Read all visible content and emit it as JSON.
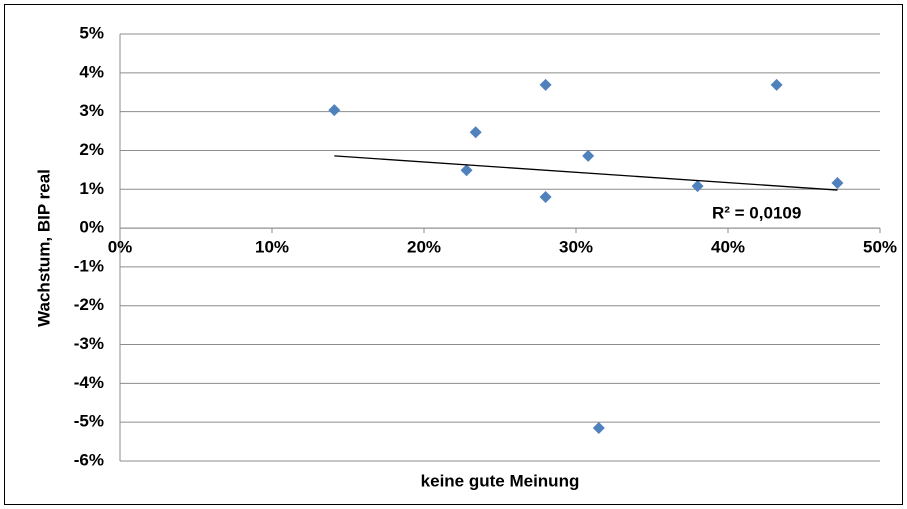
{
  "chart_data": {
    "type": "scatter",
    "x_label": "keine gute Meinung",
    "y_label": "Wachstum, BIP real",
    "series": [
      {
        "color": "#4f81bd",
        "x": [
          14.1,
          22.8,
          23.4,
          28.0,
          28.0,
          30.8,
          31.5,
          38.0,
          43.2,
          47.2
        ],
        "values": [
          3.04,
          1.49,
          2.47,
          3.69,
          0.8,
          1.86,
          -5.15,
          1.08,
          3.69,
          1.16
        ]
      }
    ],
    "trendline": {
      "x": [
        14.1,
        47.2
      ],
      "y": [
        1.86,
        0.98
      ],
      "color": "#000000",
      "label": "R² = 0,0109"
    },
    "xlim": [
      0,
      50
    ],
    "ylim": [
      -6,
      5
    ],
    "xticks": [
      {
        "value": 0,
        "label": "0%"
      },
      {
        "value": 10,
        "label": "10%"
      },
      {
        "value": 20,
        "label": "20%"
      },
      {
        "value": 30,
        "label": "30%"
      },
      {
        "value": 40,
        "label": "40%"
      },
      {
        "value": 50,
        "label": "50%"
      }
    ],
    "yticks": [
      {
        "value": 5,
        "label": "5%"
      },
      {
        "value": 4,
        "label": "4%"
      },
      {
        "value": 3,
        "label": "3%"
      },
      {
        "value": 2,
        "label": "2%"
      },
      {
        "value": 1,
        "label": "1%"
      },
      {
        "value": 0,
        "label": "0%"
      },
      {
        "value": -1,
        "label": "-1%"
      },
      {
        "value": -2,
        "label": "-2%"
      },
      {
        "value": -3,
        "label": "-3%"
      },
      {
        "value": -4,
        "label": "-4%"
      },
      {
        "value": -5,
        "label": "-5%"
      },
      {
        "value": -6,
        "label": "-6%"
      }
    ],
    "grid": true
  }
}
